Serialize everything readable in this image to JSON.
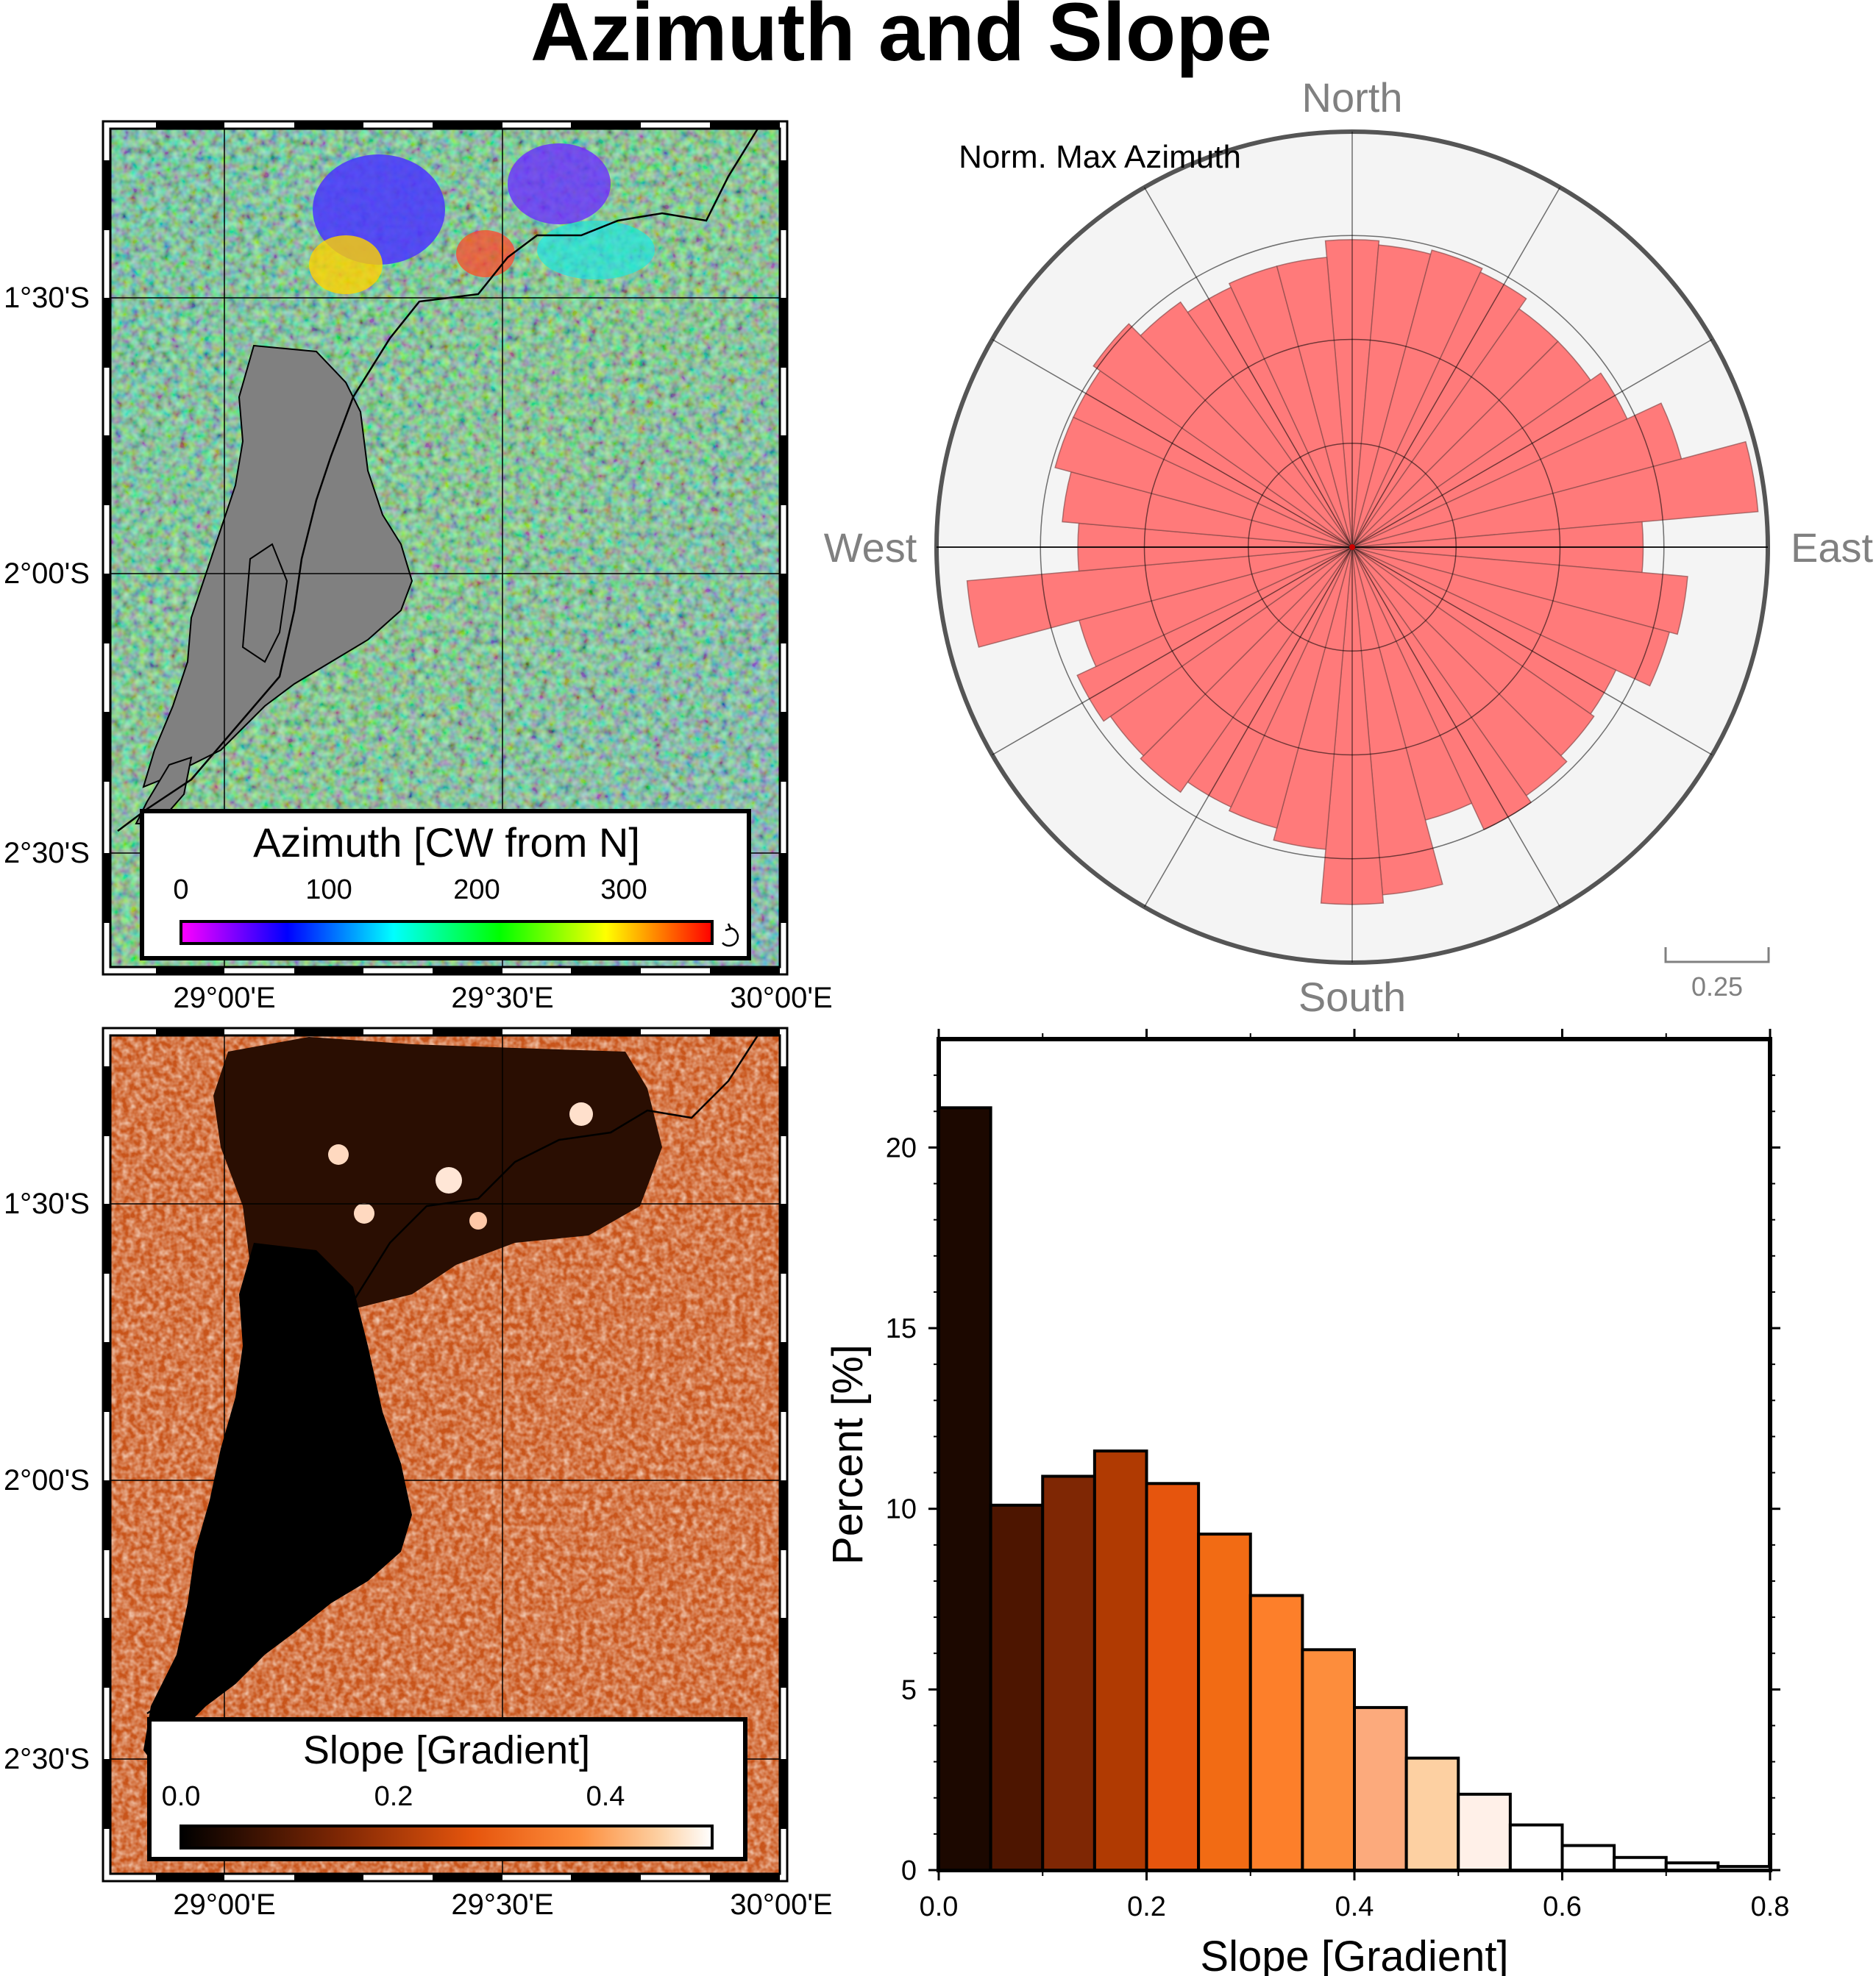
{
  "title": "Azimuth and Slope",
  "chart_data": [
    {
      "type": "heatmap",
      "panel": "azimuth-map",
      "frame": {
        "lon_range": [
          "28°48'E",
          "30°02'E"
        ],
        "lat_range": [
          "1°12'S",
          "2°42'S"
        ]
      },
      "x_ticks": [
        "29°00'E",
        "29°30'E",
        "30°00'E"
      ],
      "y_ticks": [
        "1°30'S",
        "2°00'S",
        "2°30'S"
      ],
      "colorbar": {
        "label": "Azimuth [CW from N]",
        "ticks": [
          0,
          100,
          200,
          300
        ],
        "range": [
          0,
          360
        ],
        "cyclic": true,
        "stops": [
          "#ff00ff",
          "#0000ff",
          "#00ffff",
          "#00ff00",
          "#ffff00",
          "#ff0000"
        ]
      },
      "nodata_color": "#808080"
    },
    {
      "type": "bar",
      "panel": "rose-diagram",
      "subtitle": "Norm. Max Azimuth",
      "direction_labels": [
        "North",
        "East",
        "South",
        "West"
      ],
      "scale_label": "0.25",
      "sector_width_deg": 10,
      "radius_max": 1.0,
      "ring_step": 0.25,
      "fill_color": "#ff7a7a",
      "sectors_deg_cw_from_north": [
        0,
        10,
        20,
        30,
        40,
        50,
        60,
        70,
        80,
        90,
        100,
        110,
        120,
        130,
        140,
        150,
        160,
        170,
        180,
        190,
        200,
        210,
        220,
        230,
        240,
        250,
        260,
        270,
        280,
        290,
        300,
        310,
        320,
        330,
        340,
        350
      ],
      "values": [
        0.74,
        0.73,
        0.74,
        0.73,
        0.7,
        0.7,
        0.73,
        0.82,
        0.98,
        0.7,
        0.81,
        0.79,
        0.7,
        0.71,
        0.73,
        0.75,
        0.68,
        0.84,
        0.86,
        0.73,
        0.7,
        0.69,
        0.72,
        0.71,
        0.73,
        0.68,
        0.93,
        0.66,
        0.7,
        0.74,
        0.74,
        0.76,
        0.72,
        0.69,
        0.7,
        0.7
      ]
    },
    {
      "type": "heatmap",
      "panel": "slope-map",
      "x_ticks": [
        "29°00'E",
        "29°30'E",
        "30°00'E"
      ],
      "y_ticks": [
        "1°30'S",
        "2°00'S",
        "2°30'S"
      ],
      "colorbar": {
        "label": "Slope [Gradient]",
        "ticks": [
          "0.0",
          "0.2",
          "0.4"
        ],
        "range": [
          0,
          0.5
        ],
        "stops": [
          "#000000",
          "#7f2704",
          "#e6550d",
          "#fd8d3c",
          "#fdd0a2",
          "#ffffff"
        ]
      }
    },
    {
      "type": "bar",
      "panel": "slope-histogram",
      "xlabel": "Slope [Gradient]",
      "ylabel": "Percent [%]",
      "xlim": [
        0,
        0.8
      ],
      "ylim": [
        0,
        23
      ],
      "x_ticks": [
        "0.0",
        "0.2",
        "0.4",
        "0.6",
        "0.8"
      ],
      "y_ticks": [
        "0",
        "5",
        "10",
        "15",
        "20"
      ],
      "bin_width": 0.05,
      "bin_starts": [
        0.0,
        0.05,
        0.1,
        0.15,
        0.2,
        0.25,
        0.3,
        0.35,
        0.4,
        0.45,
        0.5,
        0.55,
        0.6,
        0.65,
        0.7,
        0.75
      ],
      "values": [
        21.1,
        10.1,
        10.9,
        11.6,
        10.7,
        9.3,
        7.6,
        6.1,
        4.5,
        3.1,
        2.1,
        1.25,
        0.68,
        0.35,
        0.2,
        0.1
      ],
      "bar_colors": [
        "#1c0800",
        "#4d1500",
        "#7f2704",
        "#b03a02",
        "#e6550d",
        "#f26b14",
        "#fd7f2a",
        "#fd8d3c",
        "#fcaa7c",
        "#fdd0a2",
        "#fff0e8",
        "#ffffff",
        "#ffffff",
        "#ffffff",
        "#ffffff",
        "#ffffff"
      ]
    }
  ]
}
